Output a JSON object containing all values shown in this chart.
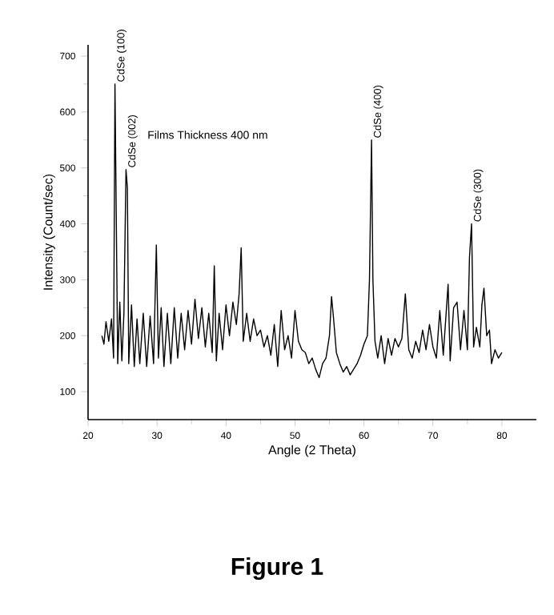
{
  "chart_data": {
    "type": "line",
    "xlabel": "Angle (2 Theta)",
    "ylabel": "Intensity (Count/sec)",
    "xlim": [
      20,
      85
    ],
    "ylim": [
      50,
      720
    ],
    "xticks": [
      20,
      30,
      40,
      50,
      60,
      70,
      80
    ],
    "yticks": [
      100,
      200,
      300,
      400,
      500,
      600,
      700
    ],
    "grid": false,
    "marker": "none",
    "line_style": "solid",
    "series": [
      {
        "color": "#000000",
        "x": [
          22,
          22.3,
          22.6,
          23,
          23.4,
          23.7,
          23.9,
          24.1,
          24.3,
          24.6,
          24.9,
          25.2,
          25.5,
          25.7,
          25.9,
          26.3,
          26.7,
          27.1,
          27.5,
          28,
          28.5,
          29,
          29.5,
          29.9,
          30.2,
          30.6,
          31,
          31.5,
          32,
          32.5,
          33,
          33.5,
          34,
          34.5,
          35,
          35.5,
          36,
          36.5,
          37,
          37.5,
          38,
          38.3,
          38.6,
          39,
          39.5,
          40,
          40.5,
          41,
          41.5,
          41.9,
          42.2,
          42.5,
          43,
          43.5,
          44,
          44.5,
          45,
          45.5,
          46,
          46.5,
          47,
          47.5,
          48,
          48.5,
          49,
          49.5,
          50,
          50.5,
          51,
          51.5,
          52,
          52.5,
          53,
          53.5,
          54,
          54.5,
          55,
          55.3,
          55.6,
          56,
          56.5,
          57,
          57.5,
          58,
          58.5,
          59,
          59.5,
          60,
          60.5,
          60.8,
          61.1,
          61.3,
          61.6,
          62,
          62.5,
          63,
          63.5,
          64,
          64.5,
          65,
          65.5,
          66,
          66.5,
          67,
          67.5,
          68,
          68.5,
          69,
          69.5,
          70,
          70.5,
          71,
          71.5,
          72.2,
          72.5,
          73,
          73.5,
          74,
          74.5,
          75,
          75.3,
          75.6,
          75.9,
          76.3,
          76.8,
          77.1,
          77.4,
          77.8,
          78.2,
          78.5,
          79,
          79.5,
          80
        ],
        "values": [
          200,
          185,
          225,
          190,
          230,
          160,
          650,
          400,
          150,
          260,
          155,
          240,
          497,
          465,
          150,
          255,
          145,
          230,
          150,
          240,
          145,
          235,
          150,
          362,
          160,
          250,
          145,
          240,
          150,
          250,
          160,
          240,
          175,
          245,
          185,
          265,
          195,
          250,
          180,
          240,
          170,
          325,
          155,
          240,
          175,
          255,
          200,
          260,
          220,
          275,
          357,
          190,
          240,
          190,
          230,
          200,
          210,
          180,
          200,
          165,
          220,
          145,
          245,
          175,
          200,
          160,
          245,
          190,
          175,
          170,
          150,
          160,
          140,
          125,
          150,
          160,
          200,
          270,
          230,
          170,
          150,
          135,
          145,
          130,
          140,
          150,
          165,
          185,
          200,
          300,
          550,
          300,
          190,
          160,
          200,
          150,
          195,
          165,
          195,
          180,
          195,
          275,
          175,
          160,
          190,
          170,
          210,
          175,
          220,
          180,
          160,
          245,
          165,
          292,
          155,
          250,
          260,
          175,
          245,
          175,
          340,
          400,
          180,
          215,
          180,
          255,
          285,
          200,
          210,
          150,
          175,
          160,
          170
        ]
      }
    ],
    "annotations": [
      {
        "text": "CdSe (100)",
        "x": 23.9,
        "y": 650
      },
      {
        "text": "CdSe (002)",
        "x": 25.5,
        "y": 497
      },
      {
        "text": "CdSe (400)",
        "x": 61.1,
        "y": 550
      },
      {
        "text": "CdSe (300)",
        "x": 75.6,
        "y": 400
      },
      "Films Thickness 400 nm",
      "Figure 1"
    ]
  }
}
